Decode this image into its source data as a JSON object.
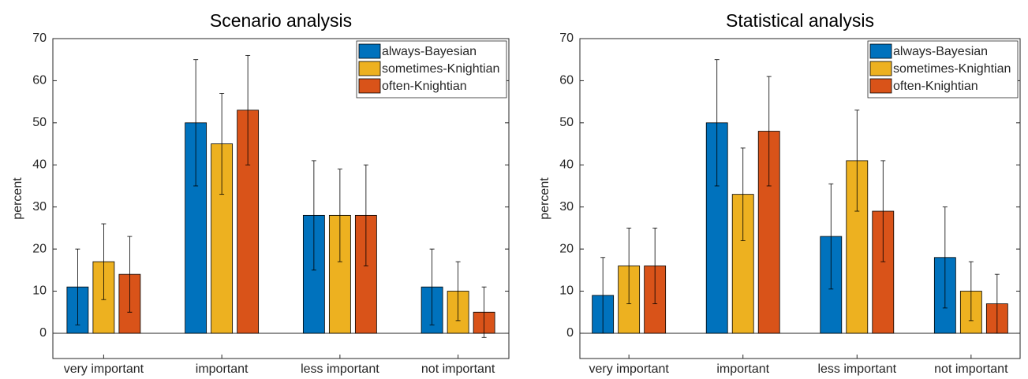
{
  "chart_data": [
    {
      "type": "bar",
      "title": "Scenario analysis",
      "ylabel": "percent",
      "categories": [
        "very important",
        "important",
        "less important",
        "not important"
      ],
      "ylim": [
        -6,
        70
      ],
      "yticks": [
        0,
        10,
        20,
        30,
        40,
        50,
        60,
        70
      ],
      "legend": "upper right",
      "series": [
        {
          "name": "always-Bayesian",
          "color": "#0072bd",
          "values": [
            11,
            50,
            28,
            11
          ],
          "errors": [
            9,
            15,
            13,
            9
          ]
        },
        {
          "name": "sometimes-Knightian",
          "color": "#edb120",
          "values": [
            17,
            45,
            28,
            10
          ],
          "errors": [
            9,
            12,
            11,
            7
          ]
        },
        {
          "name": "often-Knightian",
          "color": "#d95319",
          "values": [
            14,
            53,
            28,
            5
          ],
          "errors": [
            9,
            13,
            12,
            6
          ]
        }
      ]
    },
    {
      "type": "bar",
      "title": "Statistical analysis",
      "ylabel": "percent",
      "categories": [
        "very important",
        "important",
        "less important",
        "not important"
      ],
      "ylim": [
        -6,
        70
      ],
      "yticks": [
        0,
        10,
        20,
        30,
        40,
        50,
        60,
        70
      ],
      "legend": "upper right",
      "series": [
        {
          "name": "always-Bayesian",
          "color": "#0072bd",
          "values": [
            9,
            50,
            23,
            18
          ],
          "errors": [
            9,
            15,
            12.5,
            12
          ]
        },
        {
          "name": "sometimes-Knightian",
          "color": "#edb120",
          "values": [
            16,
            33,
            41,
            10
          ],
          "errors": [
            9,
            11,
            12,
            7
          ]
        },
        {
          "name": "often-Knightian",
          "color": "#d95319",
          "values": [
            16,
            48,
            29,
            7
          ],
          "errors": [
            9,
            13,
            12,
            7
          ]
        }
      ]
    }
  ]
}
